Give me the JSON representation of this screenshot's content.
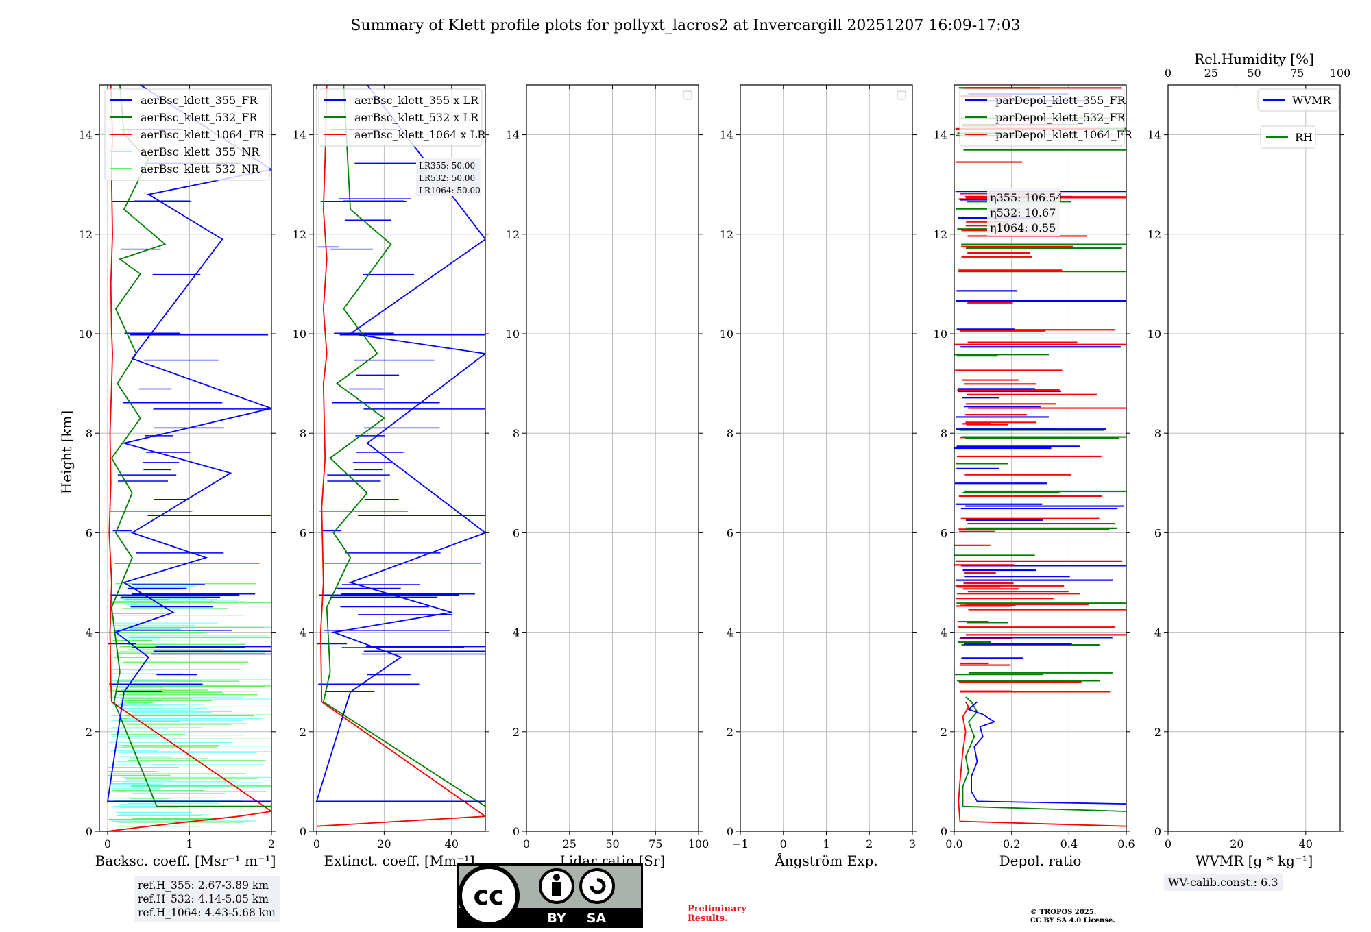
{
  "title": "Summary of Klett profile plots for pollyxt_lacros2 at Invercargill 20251207 16:09-17:03",
  "ylabel": "Height [km]",
  "colors": {
    "b355": "#0000ff",
    "b532": "#008000",
    "b1064": "#ff0000",
    "nr355": "#7fffff",
    "nr532": "#5cf05c",
    "grid": "#b0b0b0"
  },
  "chart_data": [
    {
      "type": "line",
      "id": "backscatter",
      "xlabel": "Backsc. coeff. [Msr⁻¹ m⁻¹]",
      "xlim": [
        -0.1,
        2
      ],
      "ylim": [
        0,
        15
      ],
      "xticks": [
        "0",
        "1",
        "2"
      ],
      "xtick_values": [
        0,
        1,
        2
      ],
      "yticks": [
        "0",
        "2",
        "4",
        "6",
        "8",
        "10",
        "12",
        "14"
      ],
      "legend": [
        "aerBsc_klett_355_FR",
        "aerBsc_klett_532_FR",
        "aerBsc_klett_1064_FR",
        "aerBsc_klett_355_NR",
        "aerBsc_klett_532_NR"
      ],
      "series": [
        {
          "name": "aerBsc_klett_1064_FR",
          "color": "b1064",
          "x": [
            0.0,
            0.5,
            1.6,
            2.0,
            0.05,
            0.04,
            0.03,
            0.05,
            0.02,
            0.04,
            0.03,
            0.05,
            0.06,
            0.05,
            0.04,
            0.06,
            0.05,
            0.05,
            0.06,
            0.04
          ],
          "y": [
            0.0,
            0.1,
            0.3,
            0.4,
            2.6,
            3.0,
            4.0,
            5.0,
            6.0,
            7.0,
            8.0,
            9.0,
            9.6,
            10.0,
            11.0,
            12.0,
            13.0,
            13.5,
            14.0,
            15.0
          ]
        },
        {
          "name": "aerBsc_klett_532_FR",
          "color": "b532",
          "x": [
            2.0,
            0.6,
            0.08,
            0.15,
            0.05,
            0.3,
            0.1,
            0.3,
            0.05,
            0.4,
            0.12,
            0.35,
            0.1,
            0.4,
            0.15,
            0.7,
            0.2,
            0.5,
            0.2,
            0.15
          ],
          "y": [
            0.5,
            0.5,
            2.6,
            3.2,
            4.5,
            5.5,
            6.0,
            6.8,
            7.5,
            8.3,
            9.0,
            9.6,
            10.5,
            11.2,
            11.5,
            11.8,
            12.5,
            13.5,
            14.0,
            15.0
          ]
        },
        {
          "name": "aerBsc_klett_355_FR",
          "color": "b355",
          "x": [
            2.0,
            0.0,
            0.2,
            0.5,
            0.1,
            0.8,
            0.2,
            1.2,
            0.3,
            1.5,
            0.2,
            2.0,
            0.3,
            1.4,
            0.5,
            2.0,
            0.4
          ],
          "y": [
            0.6,
            0.6,
            2.8,
            3.5,
            4.0,
            4.4,
            5.0,
            5.5,
            6.0,
            7.2,
            7.8,
            8.5,
            9.5,
            11.9,
            12.8,
            13.3,
            15.0
          ]
        }
      ]
    },
    {
      "type": "line",
      "id": "extinction",
      "xlabel": "Extinct. coeff. [Mm⁻¹]",
      "xlim": [
        -1,
        50
      ],
      "ylim": [
        0,
        15
      ],
      "xticks": [
        "0",
        "20",
        "40"
      ],
      "xtick_values": [
        0,
        20,
        40
      ],
      "yticks": [
        "0",
        "2",
        "4",
        "6",
        "8",
        "10",
        "12",
        "14"
      ],
      "legend": [
        "aerBsc_klett_355 x LR",
        "aerBsc_klett_532 x LR",
        "aerBsc_klett_1064 x LR"
      ],
      "lr_labels": [
        "LR355: 50.00",
        "LR532: 50.00",
        "LR1064: 50.00"
      ],
      "series": [
        {
          "name": "aerBsc_klett_1064 x LR",
          "color": "b1064",
          "x": [
            0,
            50,
            1.5,
            1.2,
            2.0,
            1.5,
            2.5,
            2.0,
            3.0,
            2.0,
            3.0,
            2.0,
            2.5,
            3.0
          ],
          "y": [
            0.1,
            0.3,
            2.6,
            4.0,
            5.0,
            6.5,
            7.5,
            9.0,
            9.6,
            10.5,
            11.5,
            12.5,
            13.5,
            15.0
          ]
        },
        {
          "name": "aerBsc_klett_532 x LR",
          "color": "b532",
          "x": [
            50,
            2,
            4,
            3,
            10,
            5,
            15,
            4,
            20,
            6,
            18,
            8,
            22,
            10,
            8
          ],
          "y": [
            0.5,
            2.6,
            3.2,
            4.5,
            5.5,
            6.0,
            6.8,
            7.5,
            8.3,
            9.0,
            9.6,
            10.5,
            11.8,
            12.5,
            15.0
          ]
        },
        {
          "name": "aerBsc_klett_355 x LR",
          "color": "b355",
          "x": [
            50,
            0,
            10,
            25,
            5,
            40,
            10,
            50,
            15,
            50,
            10,
            50,
            15
          ],
          "y": [
            0.6,
            0.6,
            2.8,
            3.5,
            4.0,
            4.4,
            5.0,
            6.0,
            7.8,
            9.6,
            10.0,
            11.9,
            15.0
          ]
        }
      ]
    },
    {
      "type": "line",
      "id": "lidar_ratio",
      "xlabel": "Lidar ratio [Sr]",
      "xlim": [
        0,
        100
      ],
      "ylim": [
        0,
        15
      ],
      "xticks": [
        "0",
        "25",
        "50",
        "75",
        "100"
      ],
      "xtick_values": [
        0,
        25,
        50,
        75,
        100
      ],
      "yticks": [
        "0",
        "2",
        "4",
        "6",
        "8",
        "10",
        "12",
        "14"
      ],
      "series": []
    },
    {
      "type": "line",
      "id": "angstrom",
      "xlabel": "Ångström Exp.",
      "xlim": [
        -1,
        3
      ],
      "ylim": [
        0,
        15
      ],
      "xticks": [
        "−1",
        "0",
        "1",
        "2",
        "3"
      ],
      "xtick_values": [
        -1,
        0,
        1,
        2,
        3
      ],
      "yticks": [
        "0",
        "2",
        "4",
        "6",
        "8",
        "10",
        "12",
        "14"
      ],
      "series": []
    },
    {
      "type": "line",
      "id": "depol",
      "xlabel": "Depol. ratio",
      "xlim": [
        0,
        0.6
      ],
      "ylim": [
        0,
        15
      ],
      "xticks": [
        "0.0",
        "0.2",
        "0.4",
        "0.6"
      ],
      "xtick_values": [
        0,
        0.2,
        0.4,
        0.6
      ],
      "yticks": [
        "0",
        "2",
        "4",
        "6",
        "8",
        "10",
        "12",
        "14"
      ],
      "legend": [
        "parDepol_klett_355_FR",
        "parDepol_klett_532_FR",
        "parDepol_klett_1064_FR"
      ],
      "eta_labels": [
        "η355: 106.54",
        "η532: 10.67",
        "η1064: 0.55"
      ],
      "series": [
        {
          "name": "parDepol_klett_1064_FR",
          "color": "b1064",
          "x": [
            0.6,
            0.02,
            0.015,
            0.02,
            0.03,
            0.04,
            0.03,
            0.05,
            0.04
          ],
          "y": [
            0.1,
            0.2,
            0.6,
            1.0,
            1.6,
            2.0,
            2.3,
            2.5,
            2.6
          ]
        },
        {
          "name": "parDepol_klett_532_FR",
          "color": "b532",
          "x": [
            0.6,
            0.03,
            0.03,
            0.05,
            0.04,
            0.07,
            0.05,
            0.08,
            0.06,
            0.04
          ],
          "y": [
            0.4,
            0.5,
            0.9,
            1.2,
            1.5,
            1.9,
            2.2,
            2.4,
            2.6,
            2.7
          ]
        },
        {
          "name": "parDepol_klett_355_FR",
          "color": "b355",
          "x": [
            0.6,
            0.08,
            0.06,
            0.06,
            0.08,
            0.07,
            0.1,
            0.09,
            0.14,
            0.1,
            0.05,
            0.08
          ],
          "y": [
            0.55,
            0.6,
            0.8,
            1.1,
            1.4,
            1.7,
            1.9,
            2.1,
            2.2,
            2.35,
            2.45,
            2.6
          ]
        }
      ]
    },
    {
      "type": "line",
      "id": "wvmr",
      "xlabel": "WVMR [g * kg⁻¹]",
      "xlim": [
        0,
        50
      ],
      "ylim": [
        0,
        15
      ],
      "xticks": [
        "0",
        "20",
        "40"
      ],
      "xtick_values": [
        0,
        20,
        40
      ],
      "top_xlabel": "Rel.Humidity [%]",
      "top_xticks": [
        "0",
        "25",
        "50",
        "75",
        "100"
      ],
      "top_xtick_values": [
        0,
        25,
        50,
        75,
        100
      ],
      "yticks": [
        "0",
        "2",
        "4",
        "6",
        "8",
        "10",
        "12",
        "14"
      ],
      "legend": [
        "WVMR",
        "RH"
      ],
      "series": []
    }
  ],
  "notes": {
    "ref_h": [
      "ref.H_355: 2.67-3.89 km",
      "ref.H_532: 4.14-5.05 km",
      "ref.H_1064: 4.43-5.68 km"
    ],
    "wv_calib": "WV-calib.const.: 6.3",
    "preliminary": [
      "Preliminary",
      "Results."
    ],
    "copyright": [
      "© TROPOS 2025.",
      "CC BY SA 4.0 License."
    ],
    "license_badge": [
      "cc",
      "BY",
      "SA"
    ]
  }
}
